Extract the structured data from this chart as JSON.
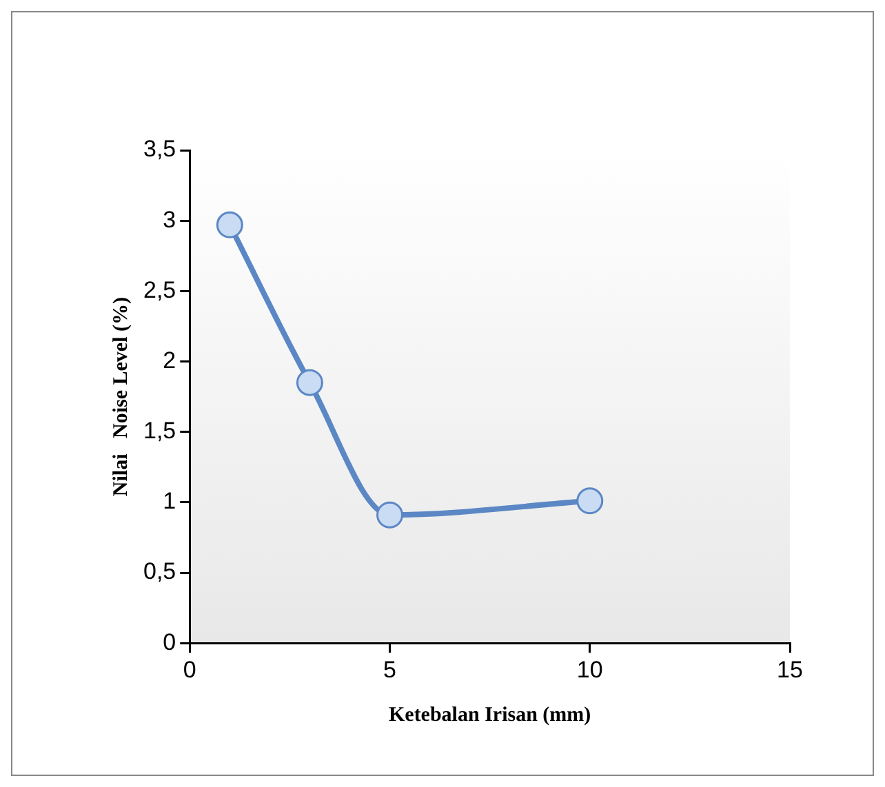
{
  "chart_data": {
    "type": "line",
    "xlabel": "Ketebalan Irisan (mm)",
    "ylabel": "Nilai   Noise Level (%)",
    "x": [
      1,
      3,
      5,
      10
    ],
    "series": [
      {
        "color": "#5b87c5",
        "values": [
          2.97,
          1.85,
          0.91,
          1.01
        ]
      }
    ],
    "xlim": [
      0,
      15
    ],
    "xticks": [
      0,
      5,
      10,
      15
    ],
    "ylim": [
      0,
      3.5
    ],
    "yticks": [
      0,
      {
        "value": 0.5,
        "label": "0,5"
      },
      1,
      {
        "value": 1.5,
        "label": "1,5"
      },
      2,
      {
        "value": 2.5,
        "label": "2,5"
      },
      3,
      {
        "value": 3.5,
        "label": "3,5"
      }
    ],
    "grid": false,
    "legend": false,
    "marker": "circle",
    "line_style": "solid"
  }
}
